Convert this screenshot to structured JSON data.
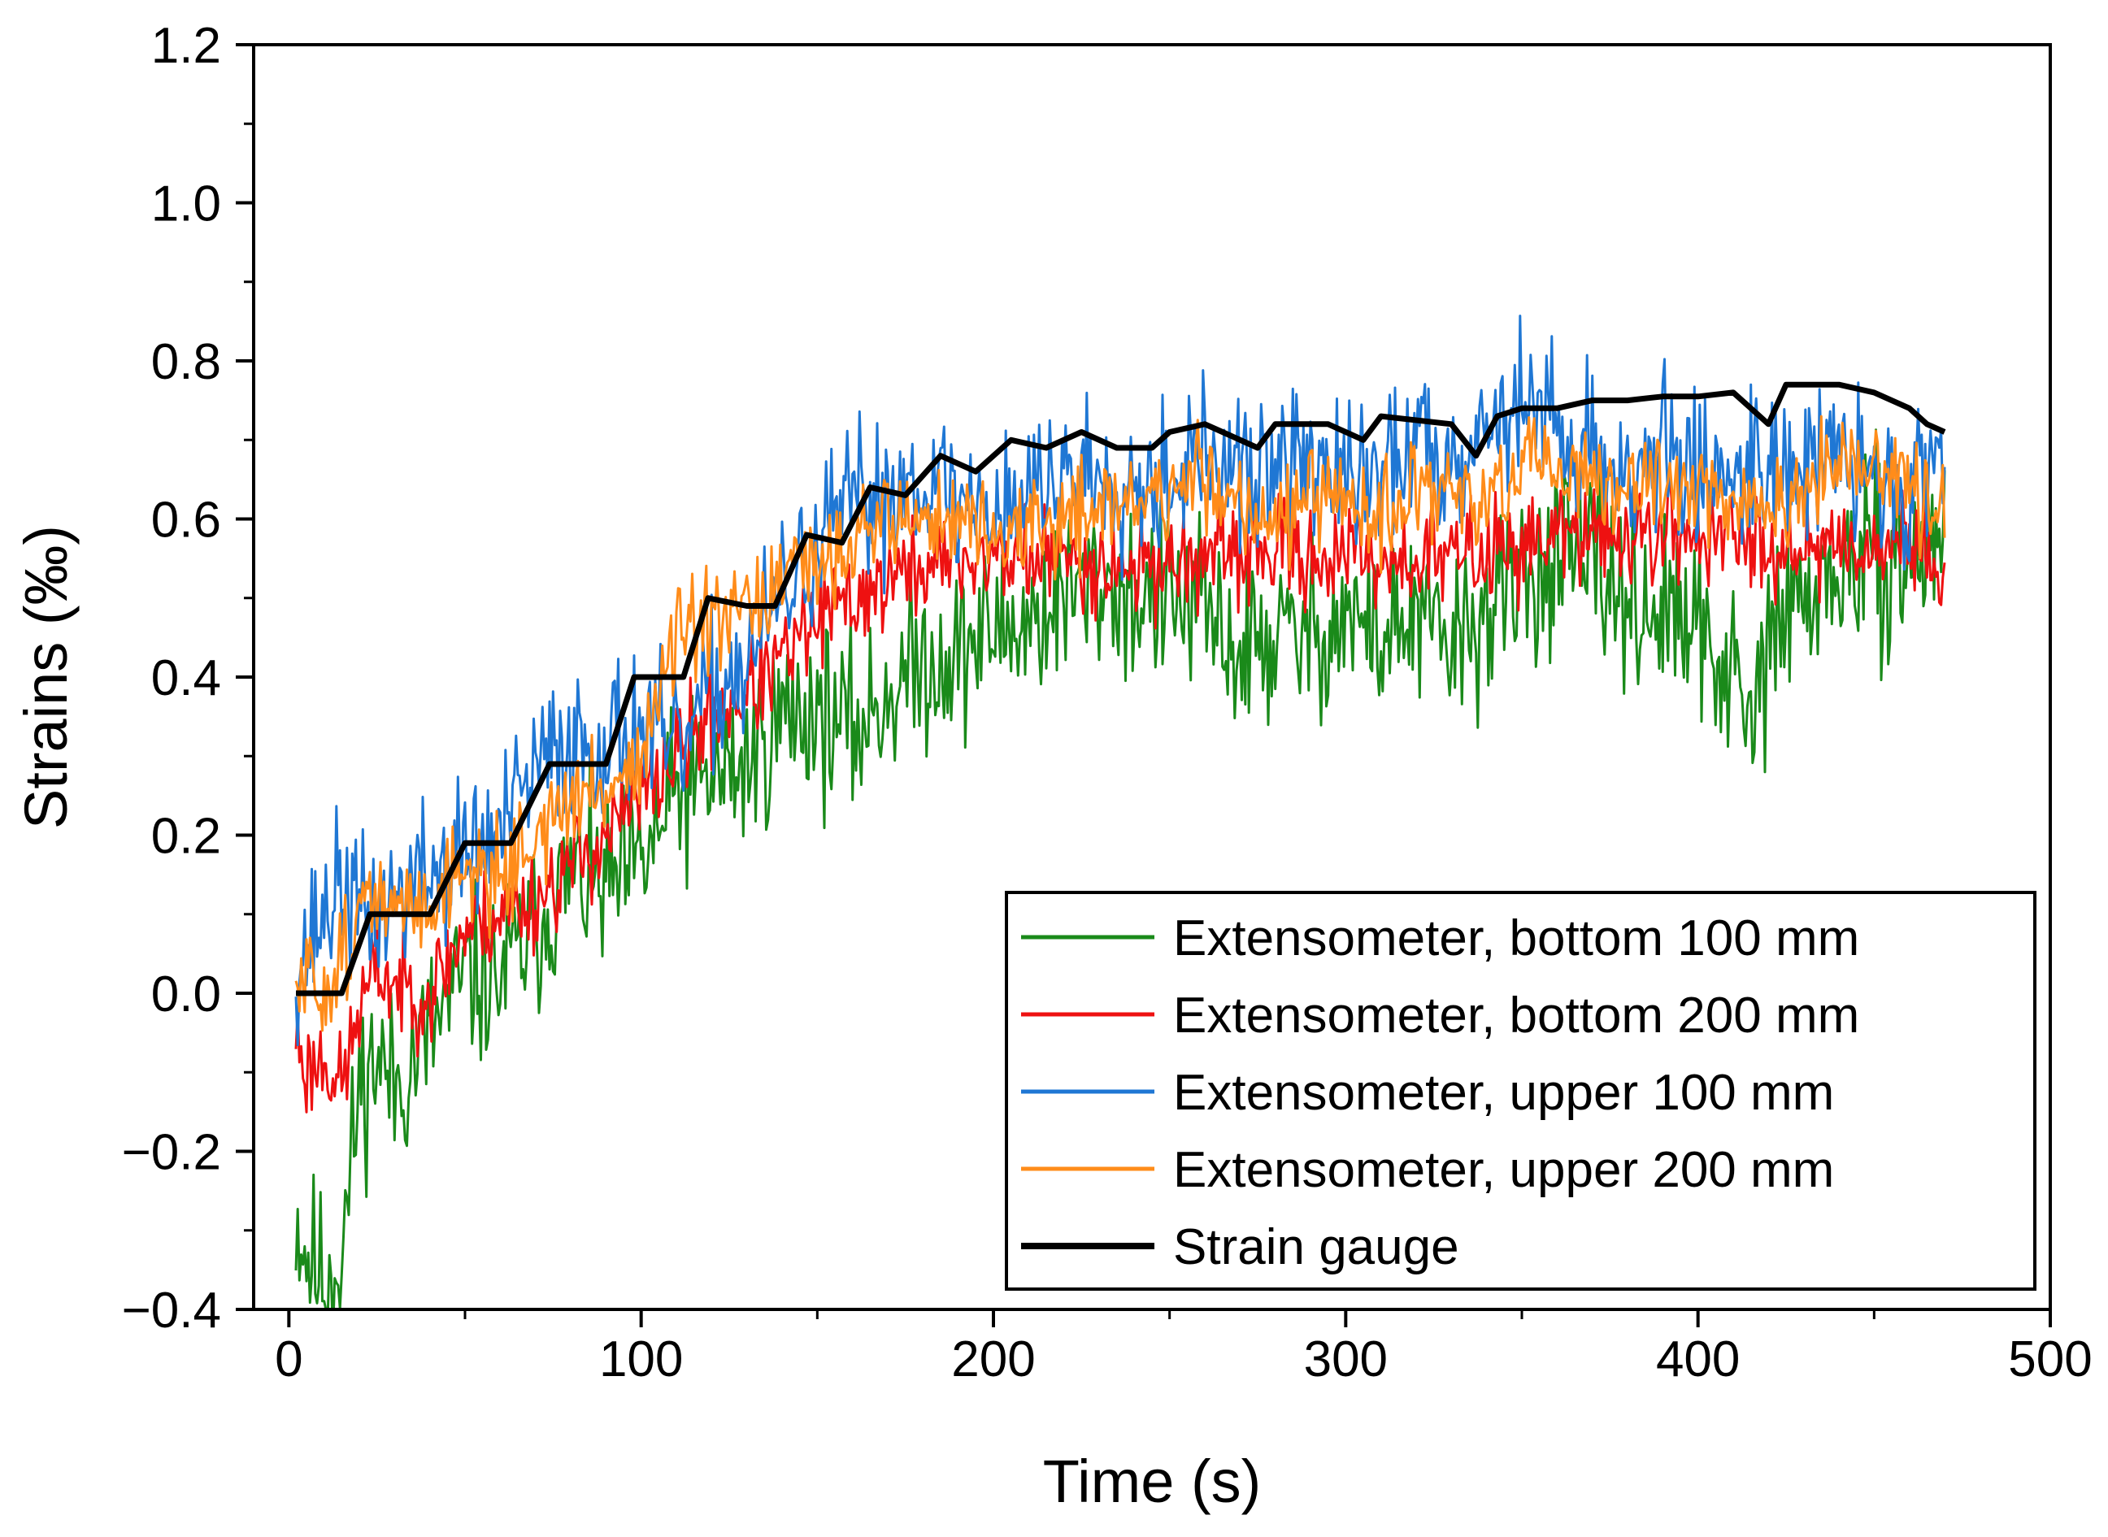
{
  "chart_data": {
    "type": "line",
    "title": "",
    "xlabel": "Time (s)",
    "ylabel": "Strains (‰)",
    "xlim": [
      -10,
      500
    ],
    "ylim": [
      -0.4,
      1.2
    ],
    "grid": false,
    "legend_position": "bottom-right",
    "x_ticks": [
      0,
      100,
      200,
      300,
      400,
      500
    ],
    "x_tick_labels": [
      "0",
      "100",
      "200",
      "300",
      "400",
      "500"
    ],
    "y_ticks": [
      -0.4,
      -0.2,
      0.0,
      0.2,
      0.4,
      0.6,
      0.8,
      1.0,
      1.2
    ],
    "y_tick_labels": [
      "−0.4",
      "−0.2",
      "0.0",
      "0.2",
      "0.4",
      "0.6",
      "0.8",
      "1.0",
      "1.2"
    ],
    "series": [
      {
        "name": "Extensometer, bottom 100 mm",
        "color": "#1a8a1a",
        "noise": 0.07,
        "seed": 11,
        "x": [
          2,
          5,
          10,
          15,
          20,
          25,
          30,
          40,
          50,
          60,
          70,
          80,
          90,
          100,
          110,
          120,
          130,
          140,
          150,
          160,
          170,
          180,
          190,
          200,
          210,
          220,
          230,
          240,
          250,
          260,
          270,
          280,
          290,
          300,
          310,
          320,
          330,
          340,
          350,
          360,
          370,
          380,
          390,
          400,
          410,
          415,
          420,
          430,
          440,
          450,
          460,
          470
        ],
        "y": [
          -0.28,
          -0.33,
          -0.36,
          -0.33,
          -0.12,
          -0.08,
          -0.12,
          -0.05,
          0.02,
          0.02,
          0.08,
          0.15,
          0.13,
          0.16,
          0.25,
          0.27,
          0.29,
          0.35,
          0.36,
          0.33,
          0.38,
          0.42,
          0.43,
          0.46,
          0.47,
          0.5,
          0.52,
          0.5,
          0.5,
          0.48,
          0.43,
          0.45,
          0.45,
          0.48,
          0.45,
          0.47,
          0.44,
          0.48,
          0.52,
          0.55,
          0.54,
          0.5,
          0.48,
          0.45,
          0.4,
          0.32,
          0.45,
          0.5,
          0.53,
          0.55,
          0.54,
          0.6
        ]
      },
      {
        "name": "Extensometer, bottom 200 mm",
        "color": "#ee1111",
        "noise": 0.04,
        "seed": 23,
        "x": [
          2,
          5,
          10,
          15,
          20,
          25,
          30,
          40,
          50,
          60,
          70,
          80,
          90,
          100,
          110,
          120,
          130,
          140,
          150,
          160,
          170,
          180,
          190,
          200,
          220,
          240,
          260,
          280,
          300,
          320,
          340,
          360,
          380,
          400,
          420,
          440,
          460,
          470
        ],
        "y": [
          -0.05,
          -0.1,
          -0.08,
          -0.12,
          -0.02,
          0.03,
          0.01,
          0.0,
          0.08,
          0.1,
          0.12,
          0.16,
          0.2,
          0.25,
          0.3,
          0.35,
          0.38,
          0.42,
          0.47,
          0.5,
          0.52,
          0.54,
          0.55,
          0.55,
          0.55,
          0.54,
          0.55,
          0.56,
          0.55,
          0.55,
          0.56,
          0.58,
          0.58,
          0.58,
          0.57,
          0.57,
          0.57,
          0.54
        ]
      },
      {
        "name": "Extensometer, upper 100 mm",
        "color": "#1f77d4",
        "noise": 0.06,
        "seed": 37,
        "x": [
          2,
          5,
          10,
          15,
          20,
          25,
          30,
          40,
          50,
          60,
          70,
          80,
          90,
          100,
          110,
          120,
          130,
          140,
          150,
          160,
          170,
          180,
          190,
          200,
          210,
          220,
          230,
          240,
          250,
          260,
          270,
          280,
          290,
          300,
          310,
          320,
          330,
          340,
          350,
          360,
          370,
          380,
          390,
          400,
          410,
          420,
          430,
          440,
          450,
          460,
          470
        ],
        "y": [
          0.04,
          0.06,
          0.1,
          0.14,
          0.1,
          0.1,
          0.12,
          0.15,
          0.18,
          0.2,
          0.28,
          0.32,
          0.32,
          0.34,
          0.3,
          0.38,
          0.42,
          0.5,
          0.56,
          0.62,
          0.63,
          0.66,
          0.62,
          0.62,
          0.63,
          0.66,
          0.66,
          0.65,
          0.66,
          0.68,
          0.65,
          0.66,
          0.68,
          0.64,
          0.66,
          0.7,
          0.68,
          0.72,
          0.75,
          0.72,
          0.68,
          0.66,
          0.68,
          0.66,
          0.66,
          0.68,
          0.66,
          0.68,
          0.65,
          0.64,
          0.68
        ]
      },
      {
        "name": "Extensometer, upper 200 mm",
        "color": "#ff8c1a",
        "noise": 0.04,
        "seed": 51,
        "x": [
          2,
          5,
          10,
          15,
          20,
          25,
          30,
          40,
          50,
          60,
          70,
          80,
          90,
          100,
          110,
          120,
          130,
          140,
          150,
          160,
          170,
          180,
          190,
          200,
          210,
          220,
          230,
          240,
          250,
          260,
          270,
          280,
          290,
          300,
          310,
          320,
          330,
          340,
          350,
          360,
          370,
          380,
          390,
          400,
          410,
          420,
          430,
          440,
          450,
          460,
          470
        ],
        "y": [
          -0.01,
          0.02,
          0.0,
          0.05,
          0.1,
          0.12,
          0.1,
          0.12,
          0.16,
          0.15,
          0.2,
          0.24,
          0.26,
          0.3,
          0.45,
          0.46,
          0.48,
          0.52,
          0.54,
          0.58,
          0.6,
          0.6,
          0.6,
          0.58,
          0.58,
          0.6,
          0.62,
          0.62,
          0.63,
          0.66,
          0.62,
          0.6,
          0.62,
          0.62,
          0.6,
          0.63,
          0.64,
          0.62,
          0.66,
          0.66,
          0.64,
          0.64,
          0.64,
          0.65,
          0.63,
          0.6,
          0.64,
          0.66,
          0.66,
          0.64,
          0.6
        ]
      },
      {
        "name": "Strain gauge",
        "color": "#000000",
        "noise": 0,
        "seed": 0,
        "x": [
          2,
          15,
          23,
          40,
          50,
          63,
          74,
          90,
          98,
          112,
          119,
          130,
          138,
          147,
          157,
          165,
          175,
          185,
          195,
          205,
          215,
          225,
          235,
          245,
          250,
          260,
          265,
          275,
          280,
          285,
          295,
          305,
          310,
          330,
          337,
          343,
          350,
          360,
          370,
          380,
          390,
          400,
          410,
          415,
          420,
          425,
          440,
          450,
          460,
          465,
          470
        ],
        "y": [
          0.0,
          0.0,
          0.1,
          0.1,
          0.19,
          0.19,
          0.29,
          0.29,
          0.4,
          0.4,
          0.5,
          0.49,
          0.49,
          0.58,
          0.57,
          0.64,
          0.63,
          0.68,
          0.66,
          0.7,
          0.69,
          0.71,
          0.69,
          0.69,
          0.71,
          0.72,
          0.71,
          0.69,
          0.72,
          0.72,
          0.72,
          0.7,
          0.73,
          0.72,
          0.68,
          0.73,
          0.74,
          0.74,
          0.75,
          0.75,
          0.755,
          0.755,
          0.76,
          0.74,
          0.72,
          0.77,
          0.77,
          0.76,
          0.74,
          0.72,
          0.71
        ]
      }
    ]
  }
}
